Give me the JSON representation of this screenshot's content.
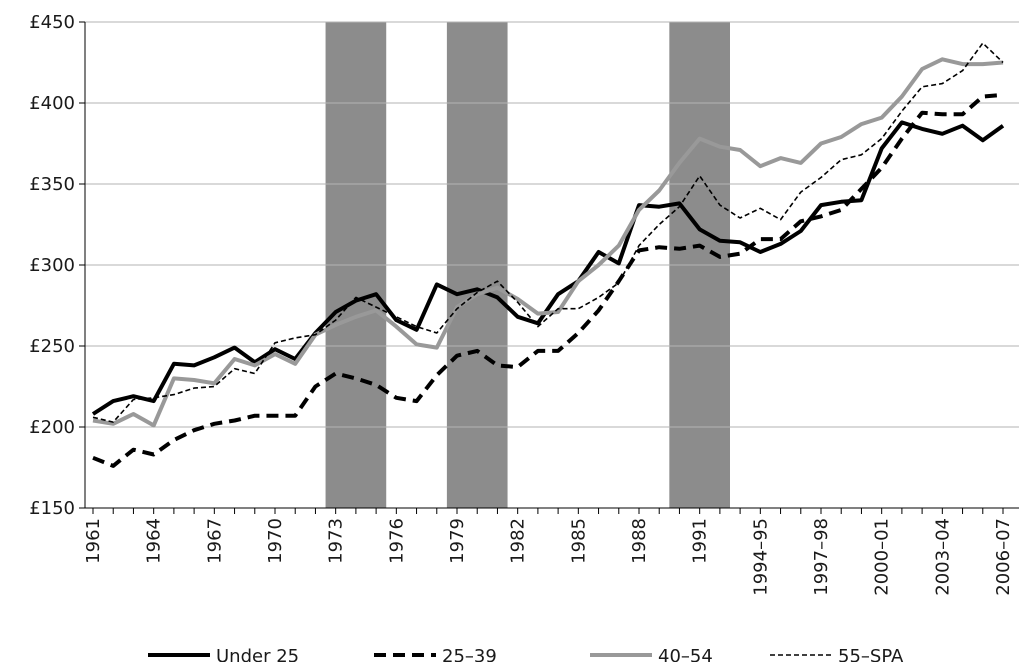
{
  "chart_data": {
    "type": "line",
    "categories": [
      "1961",
      null,
      null,
      "1964",
      null,
      null,
      "1967",
      null,
      null,
      "1970",
      null,
      null,
      "1973",
      null,
      null,
      "1976",
      null,
      null,
      "1979",
      null,
      null,
      "1982",
      null,
      null,
      "1985",
      null,
      null,
      "1988",
      null,
      null,
      "1991",
      null,
      null,
      "1994–95",
      null,
      null,
      "1997–98",
      null,
      null,
      "2000–01",
      null,
      null,
      "2003–04",
      null,
      null,
      "2006–07"
    ],
    "series": [
      {
        "name": "Under 25",
        "color": "#000000",
        "values": [
          208,
          216,
          219,
          216,
          239,
          238,
          243,
          249,
          240,
          248,
          242,
          258,
          271,
          278,
          282,
          266,
          260,
          288,
          282,
          285,
          280,
          268,
          264,
          282,
          290,
          308,
          301,
          337,
          336,
          338,
          322,
          315,
          314,
          308,
          313,
          321,
          337,
          339,
          340,
          372,
          388,
          384,
          381,
          386,
          377,
          386
        ]
      },
      {
        "name": "25–39",
        "color": "#000000",
        "values": [
          181,
          176,
          186,
          183,
          192,
          198,
          202,
          204,
          207,
          207,
          207,
          225,
          233,
          230,
          226,
          218,
          216,
          232,
          244,
          247,
          238,
          237,
          247,
          247,
          258,
          272,
          290,
          309,
          311,
          310,
          312,
          305,
          307,
          316,
          316,
          327,
          330,
          334,
          347,
          360,
          378,
          394,
          393,
          393,
          404,
          405
        ]
      },
      {
        "name": "40–54",
        "color": "#999999",
        "values": [
          204,
          202,
          208,
          201,
          230,
          229,
          227,
          242,
          238,
          245,
          239,
          257,
          263,
          268,
          272,
          262,
          251,
          249,
          274,
          282,
          286,
          279,
          270,
          271,
          290,
          300,
          312,
          334,
          346,
          363,
          378,
          373,
          371,
          361,
          366,
          363,
          375,
          379,
          387,
          391,
          404,
          421,
          427,
          424,
          424,
          425
        ]
      },
      {
        "name": "55–SPA",
        "color": "#000000",
        "values": [
          206,
          203,
          217,
          218,
          220,
          224,
          225,
          236,
          233,
          252,
          255,
          257,
          266,
          280,
          274,
          268,
          262,
          258,
          273,
          283,
          290,
          277,
          262,
          273,
          273,
          280,
          289,
          312,
          325,
          336,
          355,
          337,
          329,
          335,
          328,
          345,
          354,
          365,
          368,
          378,
          395,
          410,
          412,
          420,
          437,
          425
        ]
      }
    ],
    "shaded_bands": [
      [
        11.5,
        14.5
      ],
      [
        17.5,
        20.5
      ],
      [
        28.5,
        31.5
      ]
    ],
    "band_color": "#8c8c8c",
    "ylim": [
      150,
      450
    ],
    "yticks": [
      {
        "value": 150,
        "label": "£150"
      },
      {
        "value": 200,
        "label": "£200"
      },
      {
        "value": 250,
        "label": "£250"
      },
      {
        "value": 300,
        "label": "£300"
      },
      {
        "value": 350,
        "label": "£350"
      },
      {
        "value": 400,
        "label": "£400"
      },
      {
        "value": 450,
        "label": "£450"
      }
    ],
    "grid": true,
    "legend": "bottom"
  }
}
